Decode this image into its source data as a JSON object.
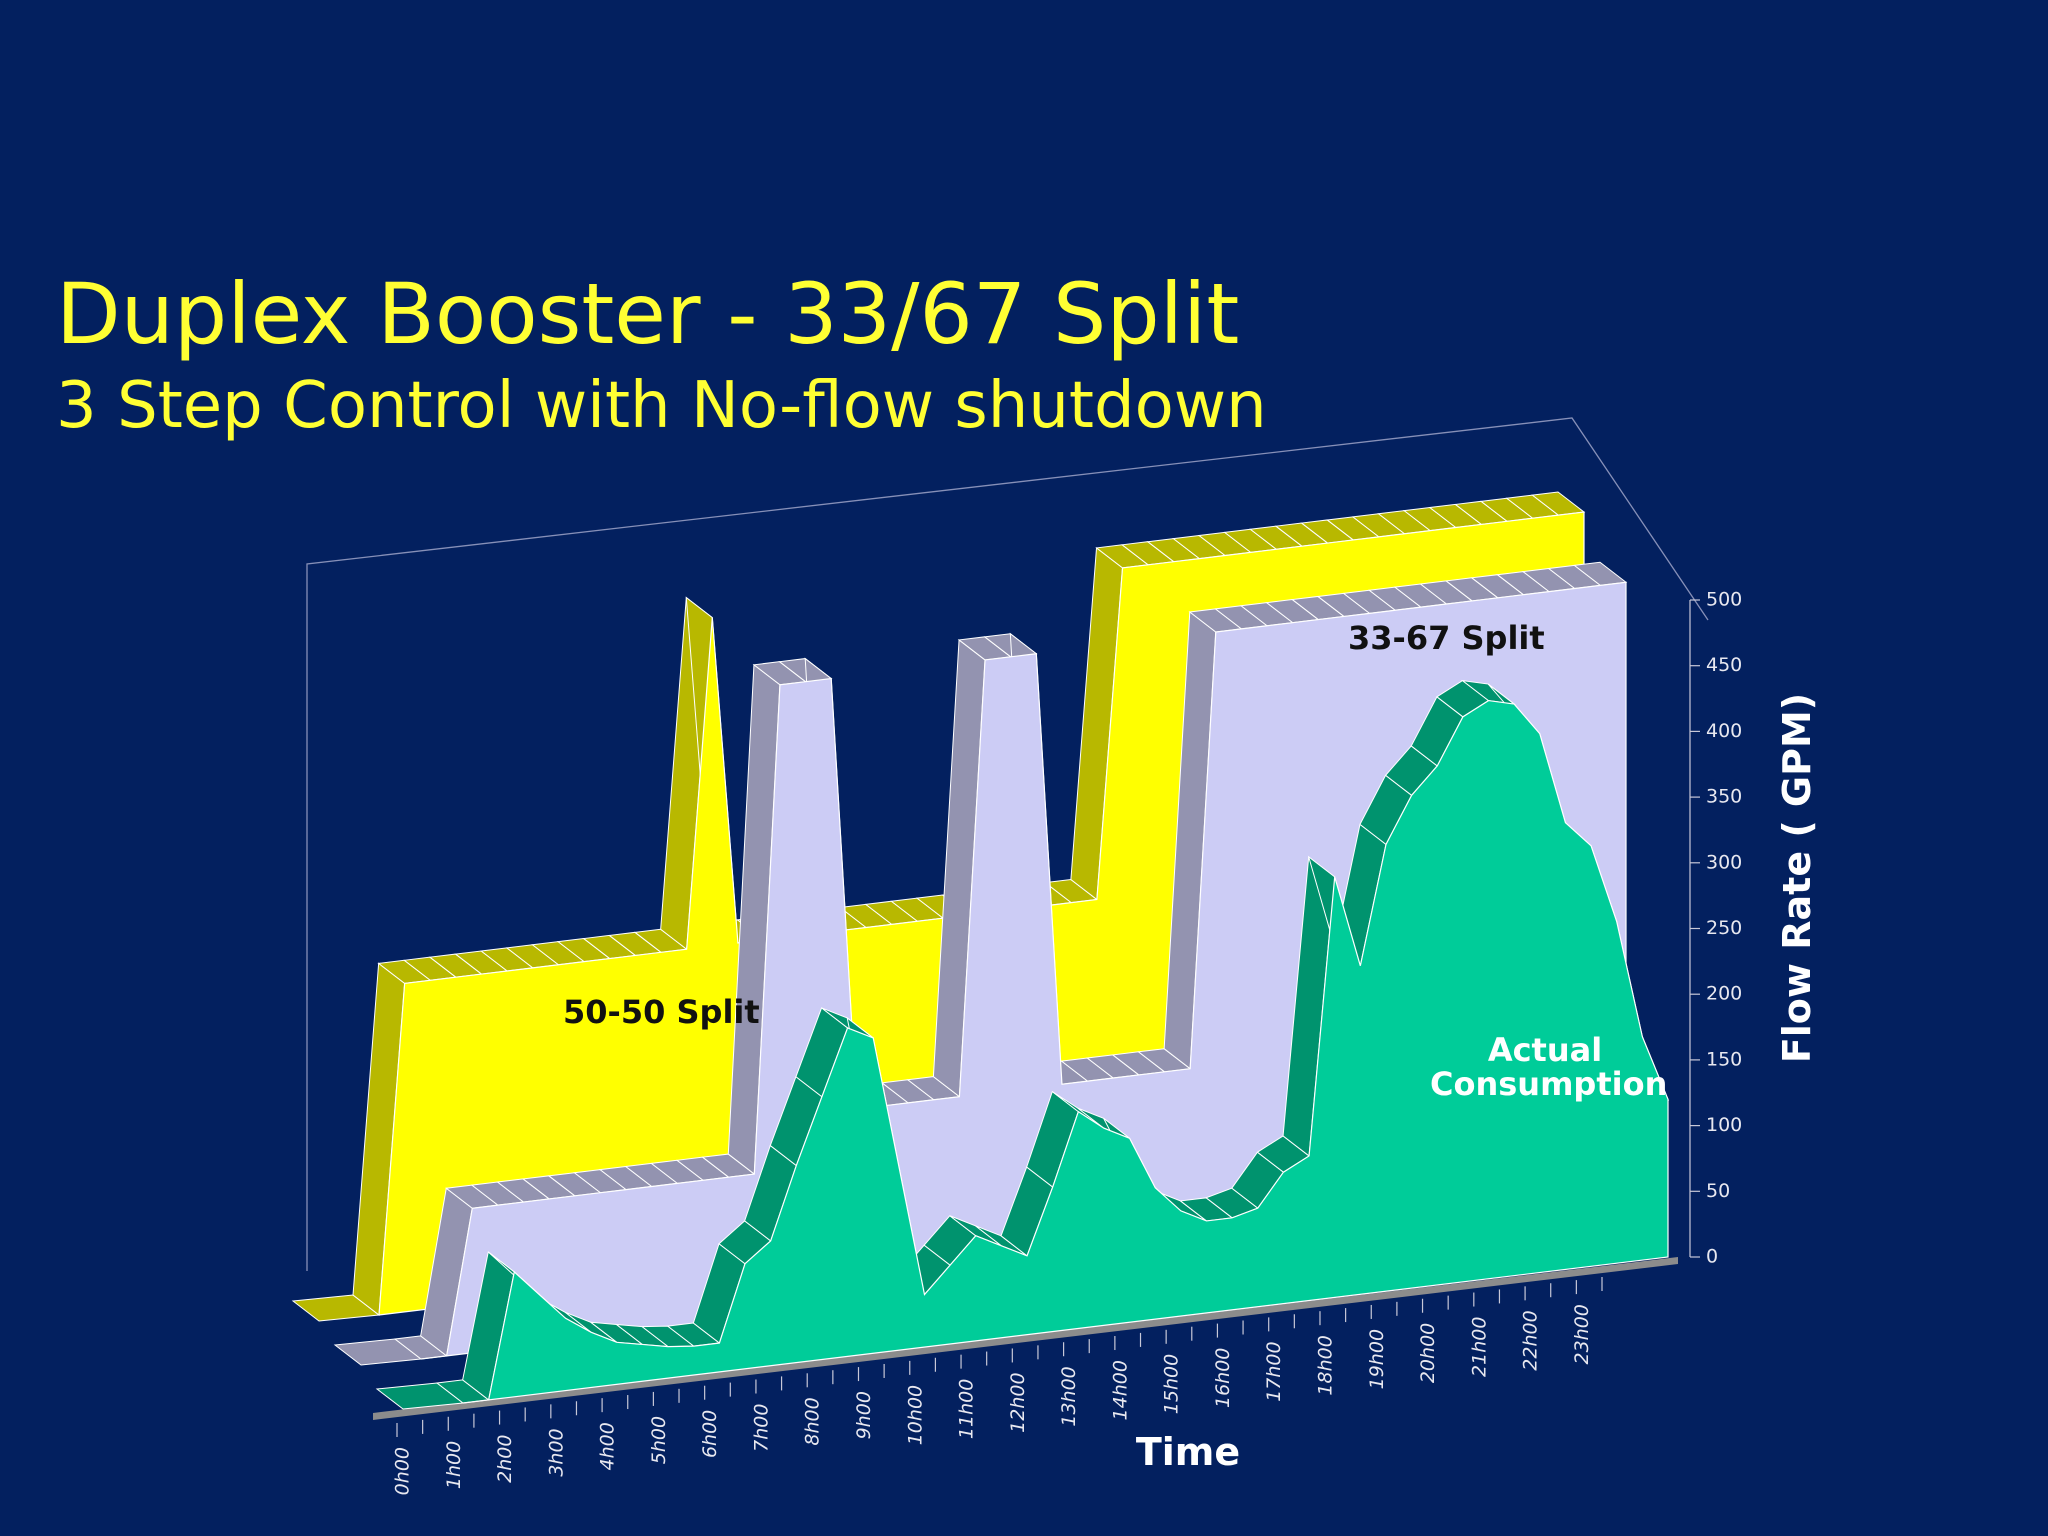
{
  "title": "Duplex Booster - 33/67 Split",
  "subtitle": "3 Step Control with No-flow shutdown",
  "chart_data": {
    "type": "area",
    "ylabel": "Flow Rate ( GPM)",
    "xlabel": "Time",
    "categories": [
      "0h00",
      null,
      "1h00",
      null,
      "2h00",
      null,
      "3h00",
      null,
      "4h00",
      null,
      "5h00",
      null,
      "6h00",
      null,
      "7h00",
      null,
      "8h00",
      null,
      "9h00",
      null,
      "10h00",
      null,
      "11h00",
      null,
      "12h00",
      null,
      "13h00",
      null,
      "14h00",
      null,
      "15h00",
      null,
      "16h00",
      null,
      "17h00",
      null,
      "18h00",
      null,
      "19h00",
      null,
      "20h00",
      null,
      "21h00",
      null,
      "22h00",
      null,
      "23h00",
      null
    ],
    "series": [
      {
        "name": "50-50 Split",
        "color": "#ffff00",
        "values": [
          0,
          250,
          250,
          250,
          250,
          250,
          250,
          250,
          250,
          250,
          250,
          250,
          250,
          500,
          250,
          250,
          250,
          250,
          250,
          250,
          250,
          250,
          250,
          250,
          250,
          250,
          250,
          250,
          250,
          500,
          500,
          500,
          500,
          500,
          500,
          500,
          500,
          500,
          500,
          500,
          500,
          500,
          500,
          500,
          500,
          500,
          500,
          500
        ]
      },
      {
        "name": "33-67 Split",
        "color": "#ccccf5",
        "values": [
          0,
          0,
          110,
          110,
          110,
          110,
          110,
          110,
          110,
          110,
          110,
          110,
          110,
          110,
          480,
          480,
          480,
          150,
          150,
          150,
          150,
          150,
          480,
          480,
          480,
          150,
          150,
          150,
          150,
          150,
          150,
          480,
          480,
          480,
          480,
          480,
          480,
          480,
          480,
          480,
          480,
          480,
          480,
          480,
          480,
          480,
          480,
          480
        ]
      },
      {
        "name": "Actual Consumption",
        "color": "#00cc99",
        "values": [
          0,
          0,
          95,
          75,
          55,
          42,
          32,
          28,
          24,
          22,
          22,
          80,
          95,
          150,
          200,
          250,
          240,
          140,
          40,
          60,
          80,
          70,
          60,
          110,
          165,
          150,
          140,
          100,
          80,
          70,
          70,
          75,
          100,
          110,
          320,
          250,
          340,
          375,
          395,
          430,
          440,
          435,
          410,
          340,
          320,
          260,
          170,
          120
        ]
      }
    ],
    "ylim": [
      0,
      500
    ],
    "yticks": [
      0,
      50,
      100,
      150,
      200,
      250,
      300,
      350,
      400,
      450,
      500
    ],
    "grid": false
  }
}
